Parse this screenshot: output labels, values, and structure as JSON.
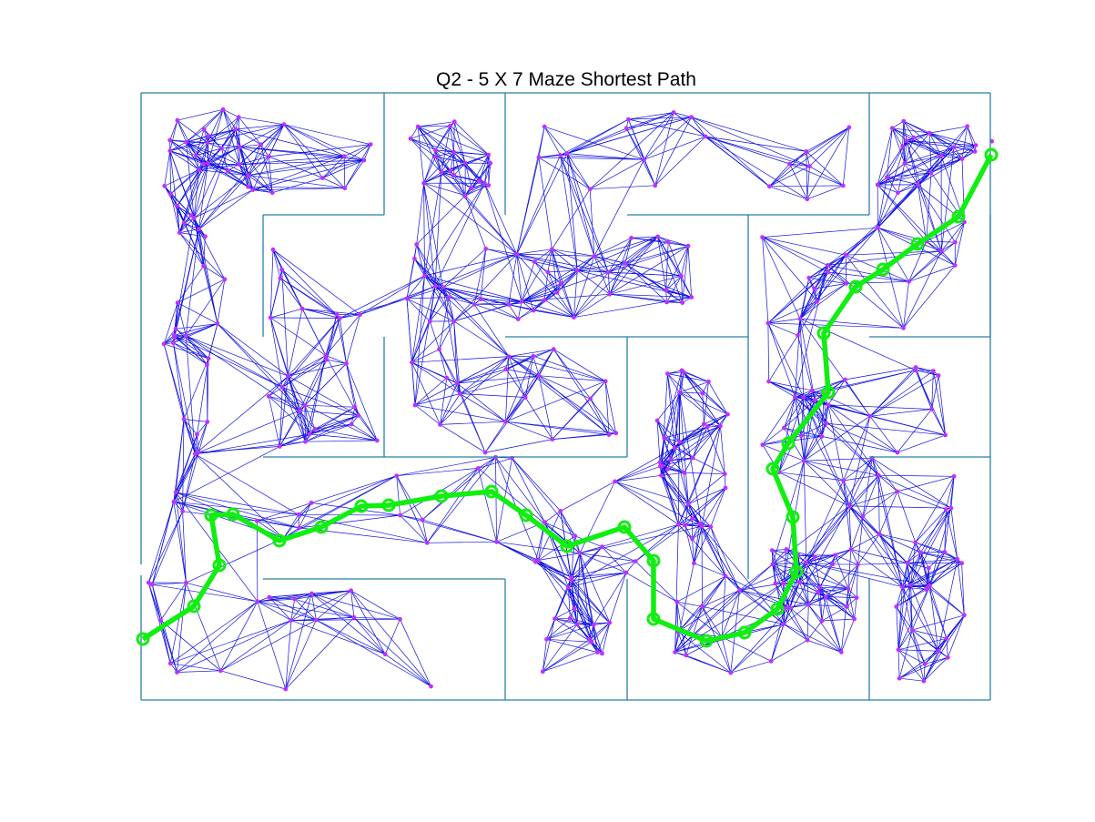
{
  "title": "Q2 - 5 X 7 Maze Shortest Path",
  "colors": {
    "wall": "#2a7fa8",
    "prm_edge": "#1010e0",
    "prm_node": "#c030ff",
    "path": "#11ee11"
  },
  "maze": {
    "rows": 5,
    "cols": 7
  },
  "graph": {
    "node_count_visible": 400,
    "seed": 7
  }
}
